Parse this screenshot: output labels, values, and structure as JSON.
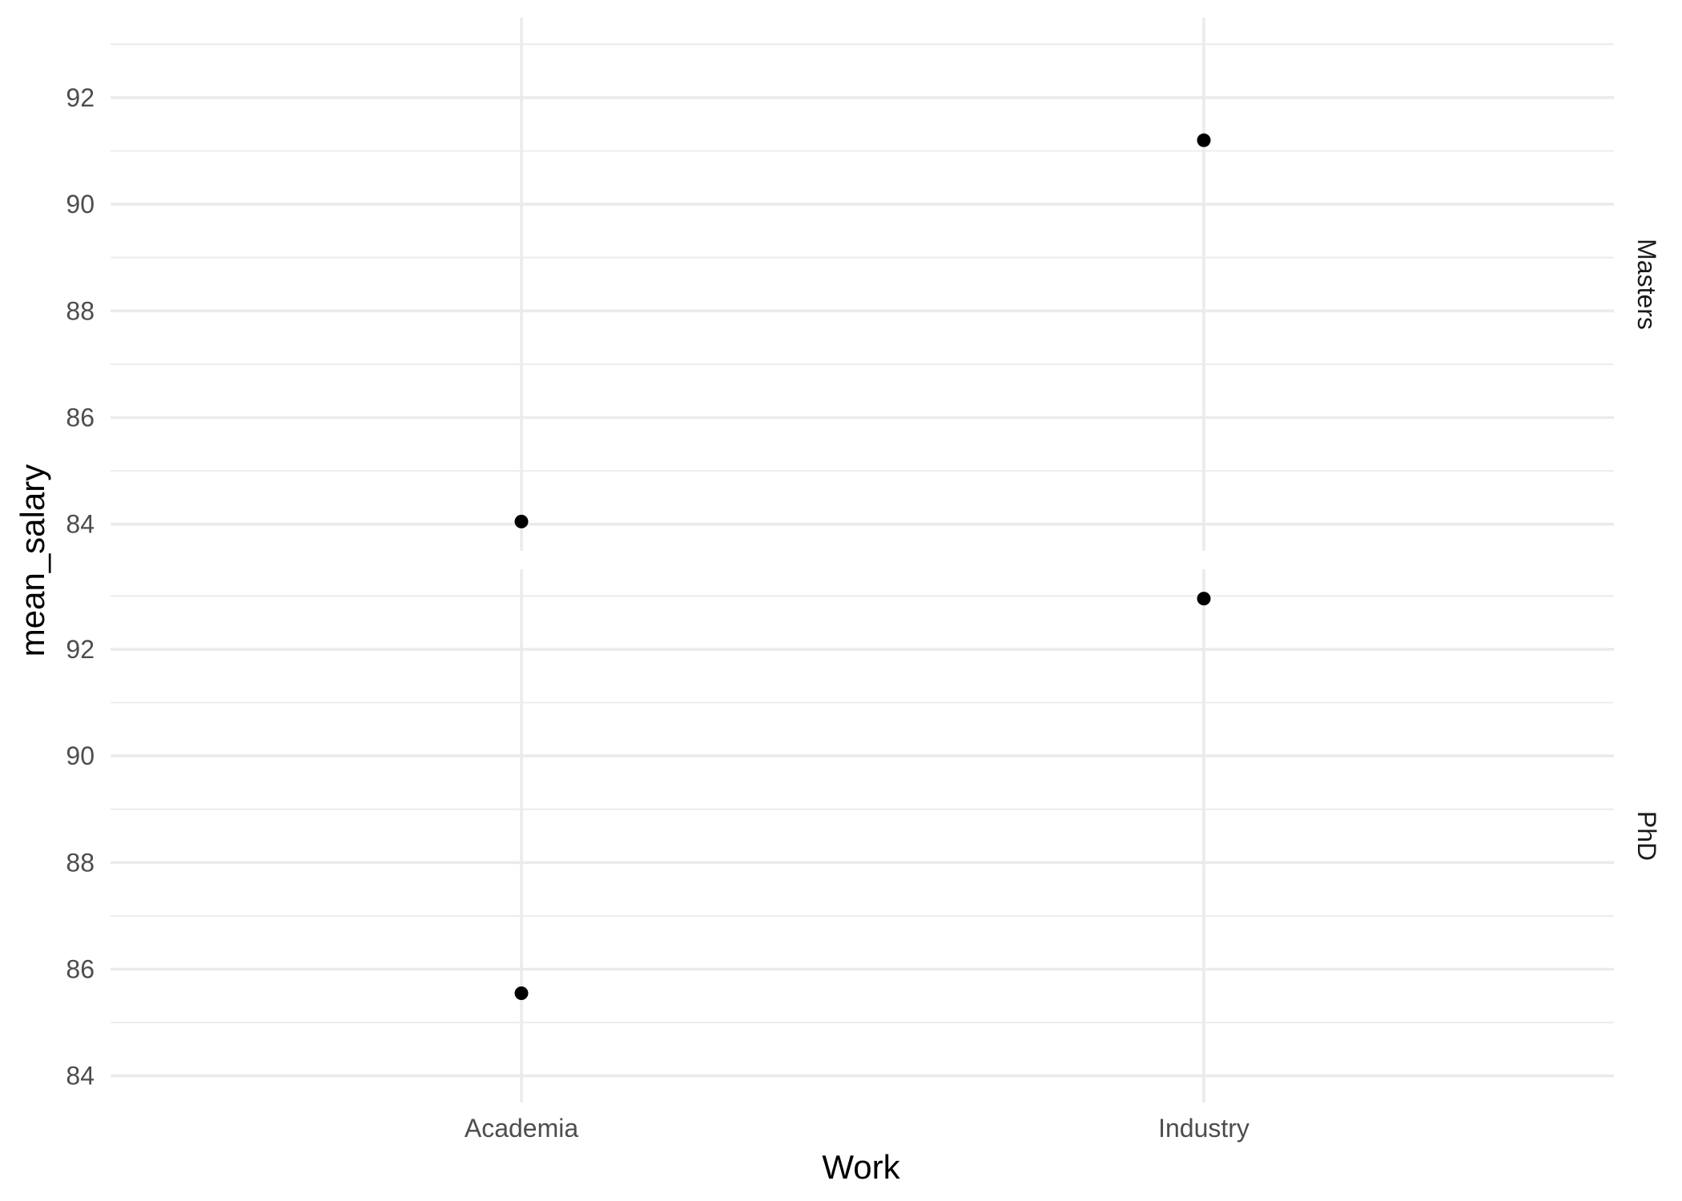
{
  "chart_data": {
    "type": "scatter",
    "facet_by": "rows",
    "xlabel": "Work",
    "ylabel": "mean_salary",
    "categories": [
      "Academia",
      "Industry"
    ],
    "y_ticks": [
      84,
      86,
      88,
      90,
      92
    ],
    "ylim": [
      83.5,
      93.5
    ],
    "grid": true,
    "panels": [
      {
        "label": "Masters",
        "x": [
          "Academia",
          "Industry"
        ],
        "y": [
          84.05,
          91.2
        ]
      },
      {
        "label": "PhD",
        "x": [
          "Academia",
          "Industry"
        ],
        "y": [
          85.55,
          92.95
        ]
      }
    ],
    "colors": {
      "point": "#000000",
      "grid": "#ebebeb",
      "background": "#ffffff"
    }
  }
}
